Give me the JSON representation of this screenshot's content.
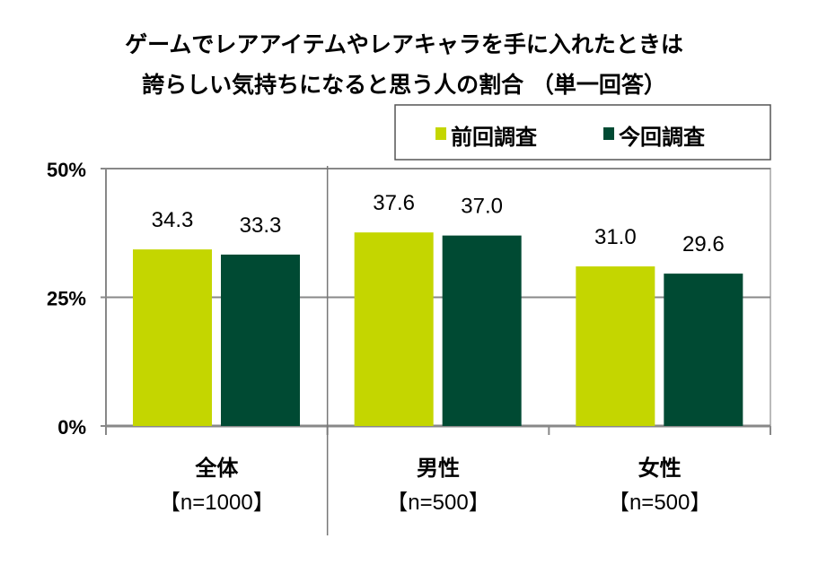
{
  "chart_data": {
    "type": "bar",
    "title_lines": [
      "ゲームでレアアイテムやレアキャラを手に入れたときは",
      "誇らしい気持ちになると思う人の割合 （単一回答）"
    ],
    "categories": [
      {
        "name": "全体",
        "n": "【n=1000】"
      },
      {
        "name": "男性",
        "n": "【n=500】"
      },
      {
        "name": "女性",
        "n": "【n=500】"
      }
    ],
    "series": [
      {
        "name": "前回調査",
        "color": "#c4d600",
        "values": [
          34.3,
          37.6,
          31.0
        ],
        "labels": [
          "34.3",
          "37.6",
          "31.0"
        ]
      },
      {
        "name": "今回調査",
        "color": "#004a33",
        "values": [
          33.3,
          37.0,
          29.6
        ],
        "labels": [
          "33.3",
          "37.0",
          "29.6"
        ]
      }
    ],
    "yticks": [
      "0%",
      "25%",
      "50%"
    ],
    "ytick_values": [
      0,
      25,
      50
    ],
    "ylim": [
      0,
      50
    ],
    "grid": true,
    "legend_position": "top-right"
  }
}
